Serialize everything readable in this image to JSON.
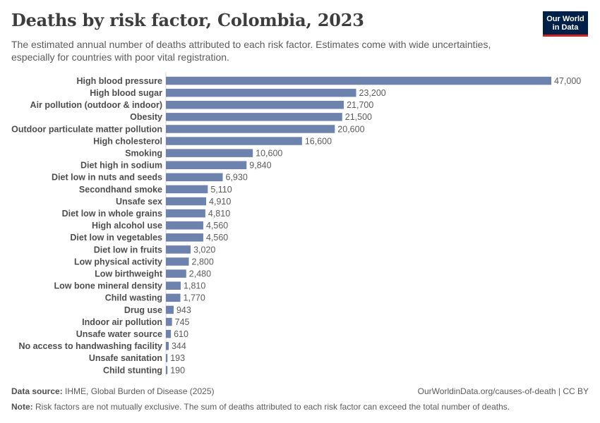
{
  "header": {
    "title": "Deaths by risk factor, Colombia, 2023",
    "subtitle": "The estimated annual number of deaths attributed to each risk factor. Estimates come with wide uncertainties, especially for countries with poor vital registration."
  },
  "logo": {
    "line1": "Our World",
    "line2": "in Data"
  },
  "colors": {
    "bar": "#6d83ad",
    "logo_bg": "#002147",
    "logo_accent": "#ce261e"
  },
  "chart_data": {
    "type": "bar",
    "orientation": "horizontal",
    "title": "Deaths by risk factor, Colombia, 2023",
    "xlabel": "",
    "ylabel": "",
    "xlim": [
      0,
      47000
    ],
    "categories": [
      "High blood pressure",
      "High blood sugar",
      "Air pollution (outdoor & indoor)",
      "Obesity",
      "Outdoor particulate matter pollution",
      "High cholesterol",
      "Smoking",
      "Diet high in sodium",
      "Diet low in nuts and seeds",
      "Secondhand smoke",
      "Unsafe sex",
      "Diet low in whole grains",
      "High alcohol use",
      "Diet low in vegetables",
      "Diet low in fruits",
      "Low physical activity",
      "Low birthweight",
      "Low bone mineral density",
      "Child wasting",
      "Drug use",
      "Indoor air pollution",
      "Unsafe water source",
      "No access to handwashing facility",
      "Unsafe sanitation",
      "Child stunting"
    ],
    "values": [
      47000,
      23200,
      21700,
      21500,
      20600,
      16600,
      10600,
      9840,
      6930,
      5110,
      4910,
      4810,
      4560,
      4560,
      3020,
      2800,
      2480,
      1810,
      1770,
      943,
      745,
      610,
      344,
      193,
      190
    ],
    "value_labels": [
      "47,000",
      "23,200",
      "21,700",
      "21,500",
      "20,600",
      "16,600",
      "10,600",
      "9,840",
      "6,930",
      "5,110",
      "4,910",
      "4,810",
      "4,560",
      "4,560",
      "3,020",
      "2,800",
      "2,480",
      "1,810",
      "1,770",
      "943",
      "745",
      "610",
      "344",
      "193",
      "190"
    ]
  },
  "footer": {
    "source_label": "Data source:",
    "source_text": "IHME, Global Burden of Disease (2025)",
    "link_text": "OurWorldinData.org/causes-of-death | CC BY",
    "note_label": "Note:",
    "note_text": "Risk factors are not mutually exclusive. The sum of deaths attributed to each risk factor can exceed the total number of deaths."
  }
}
